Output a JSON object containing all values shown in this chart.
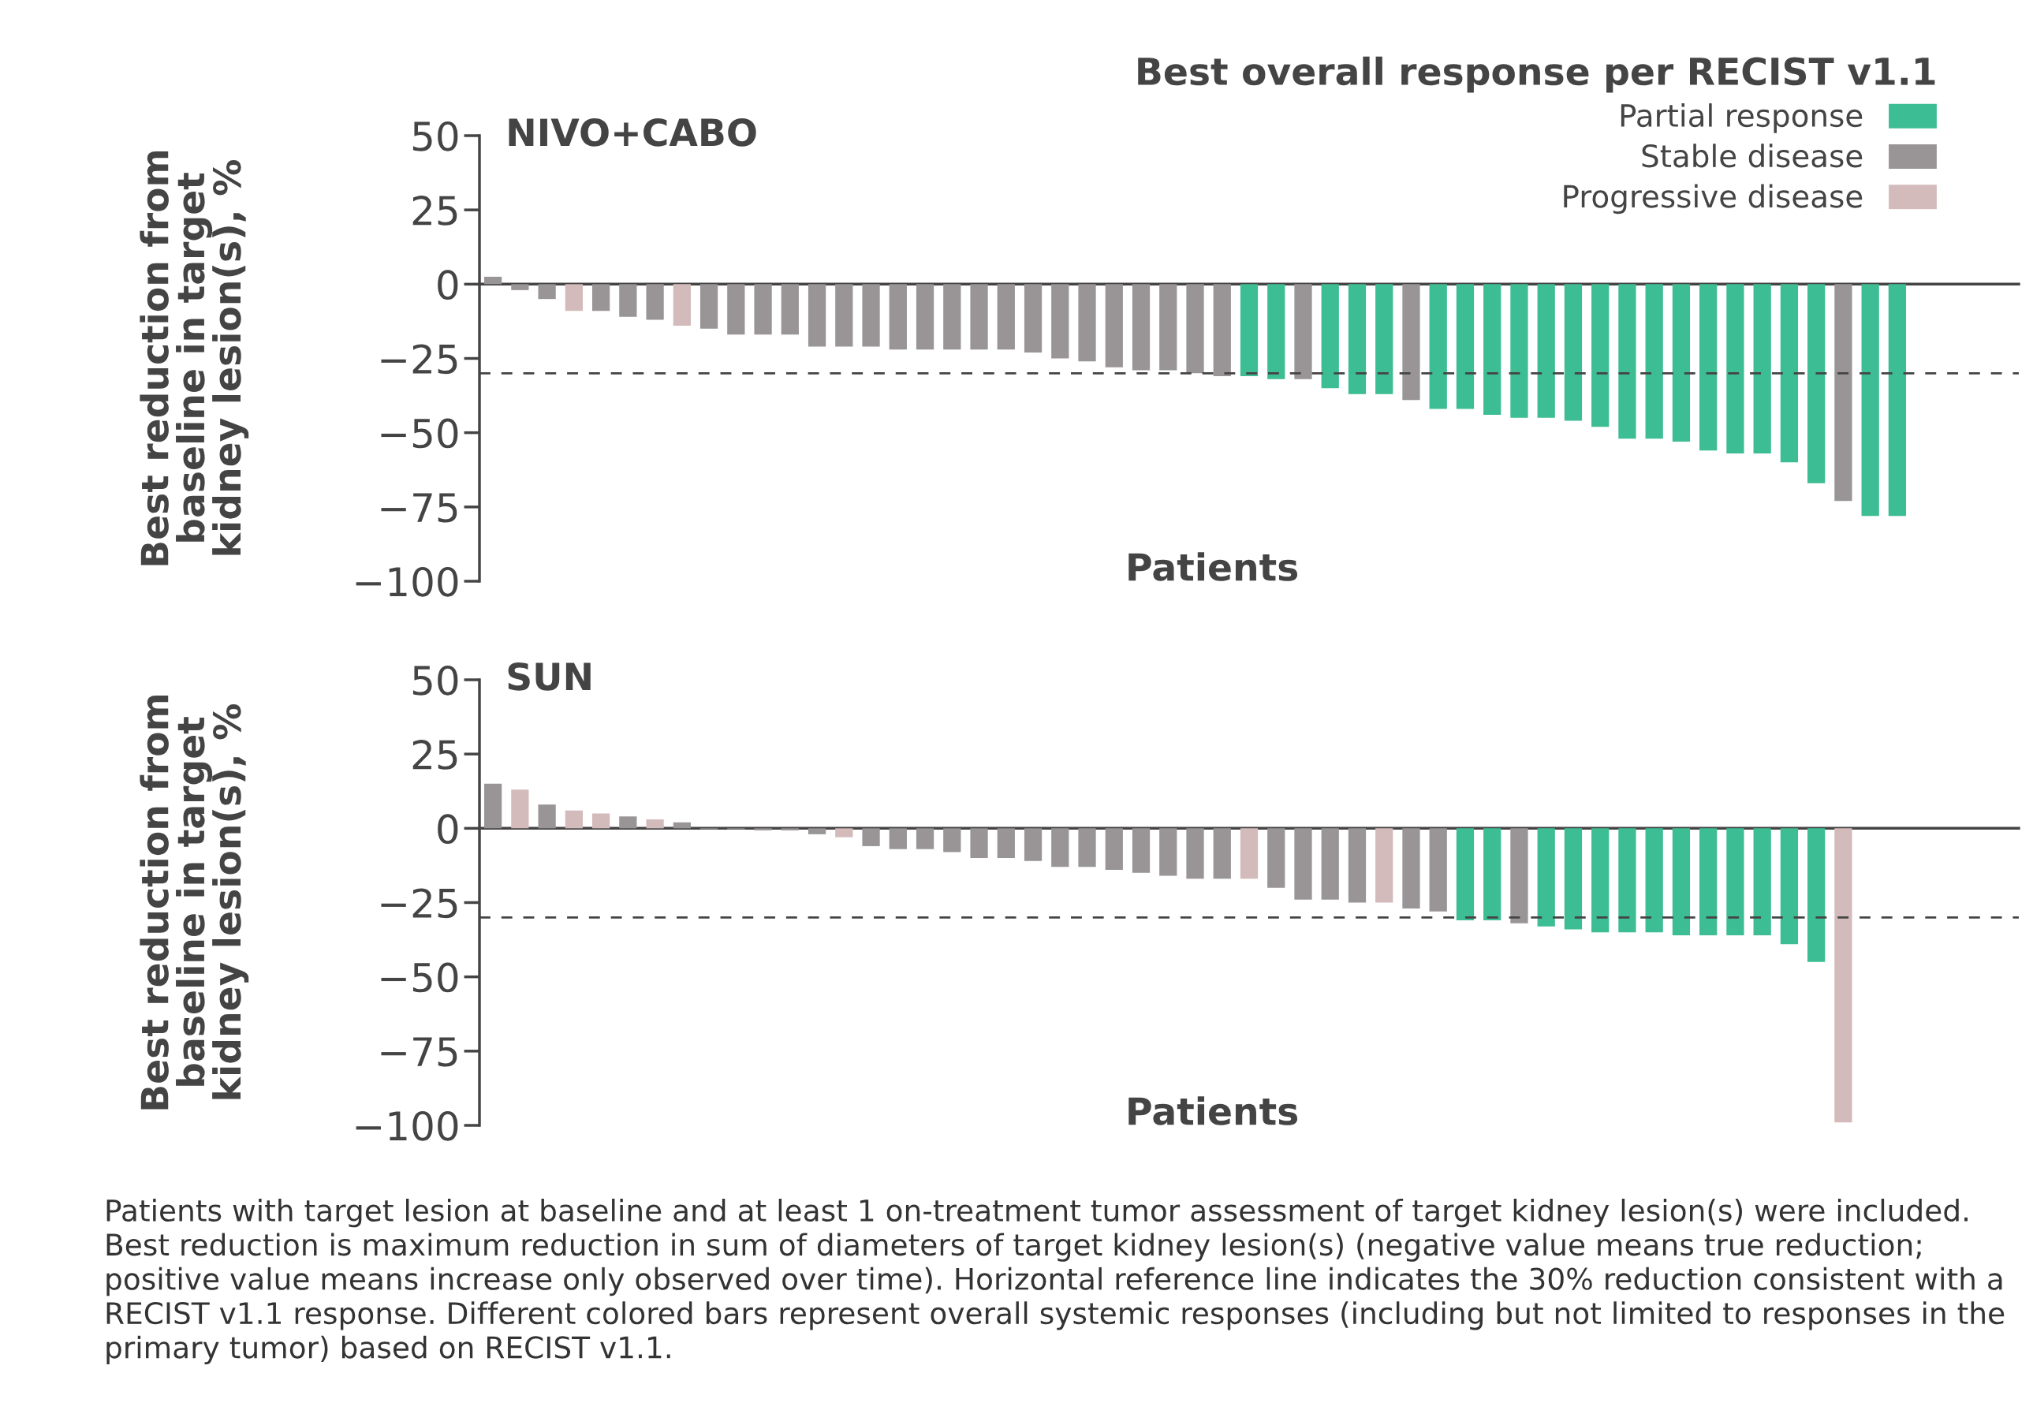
{
  "chart_data": [
    {
      "type": "bar",
      "title": "NIVO+CABO",
      "xlabel": "Patients",
      "ylabel": "Best reduction from\nbaseline in target\nkidney lesion(s), %",
      "legend_title": "Best overall response per RECIST v1.1",
      "legend": "top right",
      "tick_labels": "y",
      "categories": [
        null,
        null,
        null,
        null,
        null,
        null,
        null,
        null,
        null,
        null,
        null,
        null,
        null,
        null,
        null,
        null,
        null,
        null,
        null,
        null,
        null,
        null,
        null,
        null,
        null,
        null,
        null,
        null,
        null,
        null,
        null,
        null,
        null,
        null,
        null,
        null,
        null,
        null,
        null,
        null,
        null,
        null,
        null,
        null,
        null,
        null,
        null,
        null,
        null,
        null,
        null,
        null,
        null,
        null,
        null,
        null,
        null
      ],
      "ylim": [
        -100,
        50
      ],
      "yticks": [
        50,
        25,
        0,
        {
          "value": -25,
          "label": "−25"
        },
        {
          "value": -50,
          "label": "−50"
        },
        {
          "value": -75,
          "label": "−75"
        },
        {
          "value": -100,
          "label": "−100"
        }
      ],
      "ref_lines": [
        {
          "axis": "y",
          "value": -30,
          "line_style": "dashed",
          "color": "#444444"
        }
      ],
      "series": [
        {
          "name": "Partial response",
          "color": "#3dbd93",
          "values": [
            null,
            null,
            null,
            null,
            null,
            null,
            null,
            null,
            null,
            null,
            null,
            null,
            null,
            null,
            null,
            null,
            null,
            null,
            null,
            null,
            null,
            null,
            null,
            null,
            null,
            null,
            null,
            null,
            -31,
            -32,
            null,
            -35,
            -37,
            -37,
            null,
            -42,
            -42,
            -44,
            -45,
            -45,
            -46,
            -48,
            -52,
            -52,
            -53,
            -56,
            -57,
            -57,
            -60,
            -67,
            null,
            -78,
            -78,
            null,
            null,
            null,
            null
          ]
        },
        {
          "name": "Stable disease",
          "color": "#999596",
          "values": [
            2.5,
            -2,
            -5,
            null,
            -9,
            -11,
            -12,
            null,
            -15,
            -17,
            -17,
            -17,
            -21,
            -21,
            -21,
            -22,
            -22,
            -22,
            -22,
            -22,
            -23,
            -25,
            -26,
            -28,
            -29,
            -29,
            -30,
            -31,
            null,
            null,
            -32,
            null,
            null,
            null,
            -39,
            null,
            null,
            null,
            null,
            null,
            null,
            null,
            null,
            null,
            null,
            null,
            null,
            null,
            null,
            null,
            -73,
            null,
            null,
            null,
            null,
            null,
            null
          ]
        },
        {
          "name": "Progressive disease",
          "color": "#d3bbbb",
          "values": [
            null,
            null,
            null,
            -9,
            null,
            null,
            null,
            -14,
            null,
            null,
            null,
            null,
            null,
            null,
            null,
            null,
            null,
            null,
            null,
            null,
            null,
            null,
            null,
            null,
            null,
            null,
            null,
            null,
            null,
            null,
            null,
            null,
            null,
            null,
            null,
            null,
            null,
            null,
            null,
            null,
            null,
            null,
            null,
            null,
            null,
            null,
            null,
            null,
            null,
            null,
            null,
            null,
            null,
            null,
            null,
            null,
            null
          ]
        }
      ]
    },
    {
      "type": "bar",
      "title": "SUN",
      "xlabel": "Patients",
      "ylabel": "Best reduction from\nbaseline in target\nkidney lesion(s), %",
      "tick_labels": "y",
      "categories": [
        null,
        null,
        null,
        null,
        null,
        null,
        null,
        null,
        null,
        null,
        null,
        null,
        null,
        null,
        null,
        null,
        null,
        null,
        null,
        null,
        null,
        null,
        null,
        null,
        null,
        null,
        null,
        null,
        null,
        null,
        null,
        null,
        null,
        null,
        null,
        null,
        null,
        null,
        null,
        null,
        null,
        null,
        null,
        null,
        null,
        null,
        null,
        null,
        null,
        null,
        null,
        null,
        null,
        null,
        null,
        null,
        null
      ],
      "ylim": [
        -100,
        50
      ],
      "yticks": [
        50,
        25,
        0,
        {
          "value": -25,
          "label": "−25"
        },
        {
          "value": -50,
          "label": "−50"
        },
        {
          "value": -75,
          "label": "−75"
        },
        {
          "value": -100,
          "label": "−100"
        }
      ],
      "ref_lines": [
        {
          "axis": "y",
          "value": -30,
          "line_style": "dashed",
          "color": "#444444"
        }
      ],
      "annotations": [
        "Patients with target lesion at baseline and at least 1 on-treatment tumor assessment of target kidney lesion(s) were included. Best reduction is maximum reduction in sum of diameters of target kidney lesion(s) (negative value means true reduction; positive value means increase only observed over time). Horizontal reference line indicates the 30% reduction consistent with a RECIST v1.1 response. Different colored bars represent overall systemic responses (including but not limited to responses in the primary tumor) based on RECIST v1.1."
      ],
      "series": [
        {
          "color": "#3dbd93",
          "values": [
            null,
            null,
            null,
            null,
            null,
            null,
            null,
            null,
            null,
            null,
            null,
            null,
            null,
            null,
            null,
            null,
            null,
            null,
            null,
            null,
            null,
            null,
            null,
            null,
            null,
            null,
            null,
            null,
            null,
            null,
            null,
            null,
            null,
            null,
            null,
            null,
            -31,
            -31,
            null,
            -33,
            -34,
            -35,
            -35,
            -35,
            -36,
            -36,
            -36,
            -36,
            -39,
            -45,
            null,
            null,
            null,
            null,
            null,
            null,
            null
          ]
        },
        {
          "color": "#999596",
          "values": [
            15,
            null,
            8,
            null,
            null,
            4,
            null,
            2,
            -0.3,
            -0.3,
            -0.7,
            -0.7,
            -2,
            null,
            -6,
            -7,
            -7,
            -8,
            -10,
            -10,
            -11,
            -13,
            -13,
            -14,
            -15,
            -16,
            -17,
            -17,
            null,
            -20,
            -24,
            -24,
            -25,
            null,
            -27,
            -28,
            null,
            null,
            -32,
            null,
            null,
            null,
            null,
            null,
            null,
            null,
            null,
            null,
            null,
            null,
            null,
            null,
            null,
            null,
            null,
            null,
            null
          ]
        },
        {
          "color": "#d3bbbb",
          "values": [
            null,
            13,
            null,
            6,
            5,
            null,
            3,
            null,
            null,
            null,
            null,
            null,
            null,
            -3,
            null,
            null,
            null,
            null,
            null,
            null,
            null,
            null,
            null,
            null,
            null,
            null,
            null,
            null,
            -17,
            null,
            null,
            null,
            null,
            -25,
            null,
            null,
            null,
            null,
            null,
            null,
            null,
            null,
            null,
            null,
            null,
            null,
            null,
            null,
            null,
            null,
            -99,
            null,
            null,
            null,
            null,
            null,
            null
          ]
        }
      ]
    }
  ]
}
